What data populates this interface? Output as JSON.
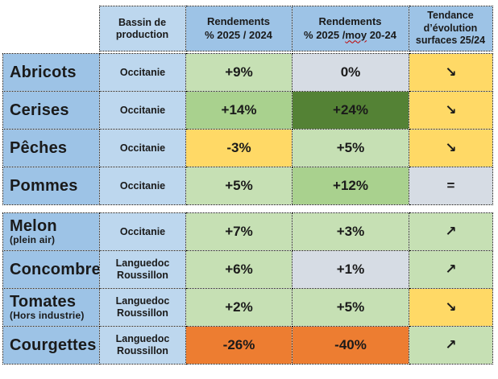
{
  "palette": {
    "header_blue": "#9DC3E6",
    "product_blue": "#9DC3E6",
    "bassin_blue": "#BDD7EE",
    "green_light": "#C6E0B4",
    "green_medium": "#A9D18E",
    "green_dark": "#548235",
    "yellow": "#FFD966",
    "lavender": "#D6DCE4",
    "orange": "#ED7D31",
    "border_black": "#000000"
  },
  "header": {
    "bassin": "Bassin de production",
    "r1_line1": "Rendements",
    "r1_line2": "% 2025 / 2024",
    "r2_line1": "Rendements",
    "r2_prefix": "% 2025 /",
    "r2_misspelled_word": "moy",
    "r2_suffix": " 20-24",
    "trend": "Tendance d’évolution surfaces 25/24"
  },
  "fruits": [
    {
      "name": "Abricots",
      "note": "",
      "bassin": "Occitanie",
      "v1": {
        "text": "+9%",
        "bg": "#C6E0B4"
      },
      "v2": {
        "text": "0%",
        "bg": "#D6DCE4"
      },
      "trend": {
        "glyph": "↘︎",
        "bg": "#FFD966"
      }
    },
    {
      "name": "Cerises",
      "note": "",
      "bassin": "Occitanie",
      "v1": {
        "text": "+14%",
        "bg": "#A9D18E"
      },
      "v2": {
        "text": "+24%",
        "bg": "#548235"
      },
      "trend": {
        "glyph": "↘︎",
        "bg": "#FFD966"
      }
    },
    {
      "name": "Pêches",
      "note": "",
      "bassin": "Occitanie",
      "v1": {
        "text": "-3%",
        "bg": "#FFD966"
      },
      "v2": {
        "text": "+5%",
        "bg": "#C6E0B4"
      },
      "trend": {
        "glyph": "↘︎",
        "bg": "#FFD966"
      }
    },
    {
      "name": "Pommes",
      "note": "",
      "bassin": "Occitanie",
      "v1": {
        "text": "+5%",
        "bg": "#C6E0B4"
      },
      "v2": {
        "text": "+12%",
        "bg": "#A9D18E"
      },
      "trend": {
        "glyph": "=",
        "bg": "#D6DCE4"
      }
    }
  ],
  "vegetables": [
    {
      "name": "Melon",
      "note": "(plein air)",
      "bassin": "Occitanie",
      "v1": {
        "text": "+7%",
        "bg": "#C6E0B4"
      },
      "v2": {
        "text": "+3%",
        "bg": "#C6E0B4"
      },
      "trend": {
        "glyph": "↗︎",
        "bg": "#C6E0B4"
      }
    },
    {
      "name": "Concombre",
      "note": "",
      "bassin": "Languedoc Roussillon",
      "v1": {
        "text": "+6%",
        "bg": "#C6E0B4"
      },
      "v2": {
        "text": "+1%",
        "bg": "#D6DCE4"
      },
      "trend": {
        "glyph": "↗︎",
        "bg": "#C6E0B4"
      }
    },
    {
      "name": "Tomates",
      "note": "(Hors industrie)",
      "bassin": "Languedoc Roussillon",
      "v1": {
        "text": "+2%",
        "bg": "#C6E0B4"
      },
      "v2": {
        "text": "+5%",
        "bg": "#C6E0B4"
      },
      "trend": {
        "glyph": "↘︎",
        "bg": "#FFD966"
      }
    },
    {
      "name": "Courgettes",
      "note": "",
      "bassin": "Languedoc Roussillon",
      "v1": {
        "text": "-26%",
        "bg": "#ED7D31"
      },
      "v2": {
        "text": "-40%",
        "bg": "#ED7D31"
      },
      "trend": {
        "glyph": "↗︎",
        "bg": "#C6E0B4"
      }
    }
  ]
}
